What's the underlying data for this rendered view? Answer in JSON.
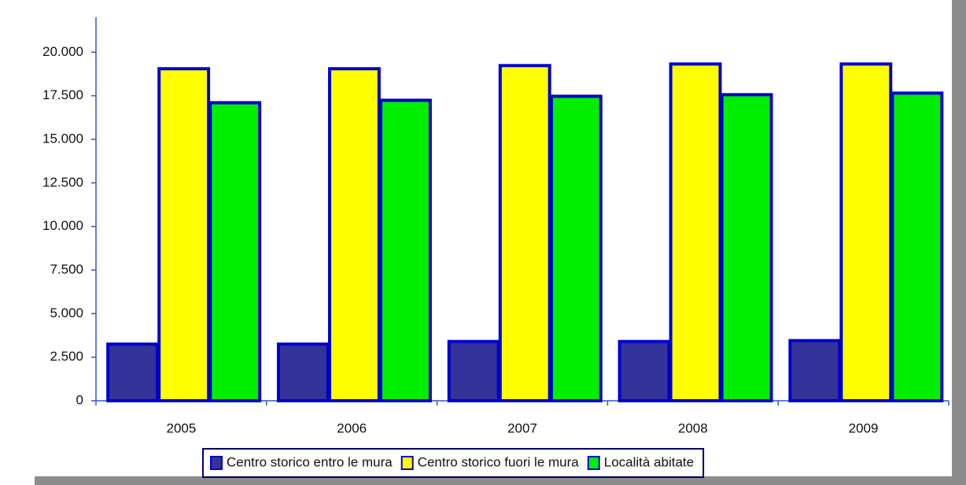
{
  "chart_data": {
    "type": "bar",
    "categories": [
      "2005",
      "2006",
      "2007",
      "2008",
      "2009"
    ],
    "series": [
      {
        "name": "Centro storico entro le mura",
        "color": "#333399",
        "values": [
          3250,
          3250,
          3400,
          3400,
          3450
        ]
      },
      {
        "name": "Centro storico fuori le mura",
        "color": "#ffff00",
        "values": [
          19050,
          19050,
          19230,
          19320,
          19320
        ]
      },
      {
        "name": "Località abitate",
        "color": "#00ee00",
        "values": [
          17100,
          17240,
          17470,
          17560,
          17650
        ]
      }
    ],
    "ylim": [
      0,
      22000
    ],
    "yticks": [
      0,
      {
        "value": 2500,
        "label": "2.500"
      },
      {
        "value": 5000,
        "label": "5.000"
      },
      {
        "value": 7500,
        "label": "7.500"
      },
      {
        "value": 10000,
        "label": "10.000"
      },
      {
        "value": 12500,
        "label": "12.500"
      },
      {
        "value": 15000,
        "label": "15.000"
      },
      {
        "value": 17500,
        "label": "17.500"
      },
      {
        "value": 20000,
        "label": "20.000"
      }
    ],
    "grid": false,
    "legend": "bottom"
  }
}
